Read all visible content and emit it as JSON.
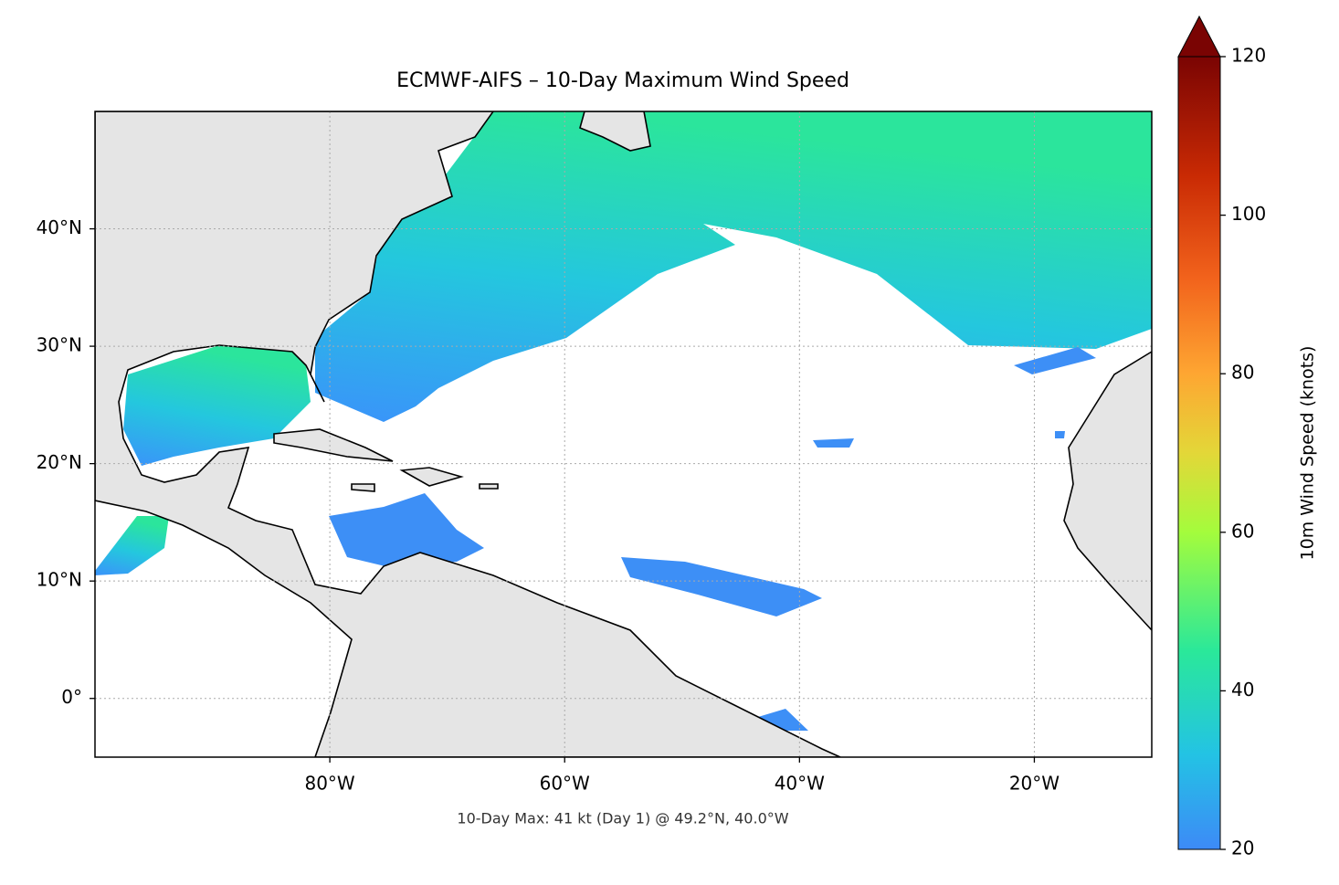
{
  "title": "ECMWF-AIFS – 10-Day Maximum Wind Speed",
  "footnote": "10-Day Max: 41 kt (Day 1) @ 49.2°N, 40.0°W",
  "map": {
    "xlim": [
      -100,
      -10
    ],
    "ylim": [
      -5,
      50
    ],
    "xticks": [
      {
        "value": -80,
        "label": "80°W"
      },
      {
        "value": -60,
        "label": "60°W"
      },
      {
        "value": -40,
        "label": "40°W"
      },
      {
        "value": -20,
        "label": "20°W"
      }
    ],
    "yticks": [
      {
        "value": 0,
        "label": "0°"
      },
      {
        "value": 10,
        "label": "10°N"
      },
      {
        "value": 20,
        "label": "20°N"
      },
      {
        "value": 30,
        "label": "30°N"
      },
      {
        "value": 40,
        "label": "40°N"
      }
    ]
  },
  "colorbar": {
    "label": "10m Wind Speed (knots)",
    "lim": [
      20,
      120
    ],
    "ticks": [
      20,
      40,
      60,
      80,
      100,
      120
    ]
  }
}
